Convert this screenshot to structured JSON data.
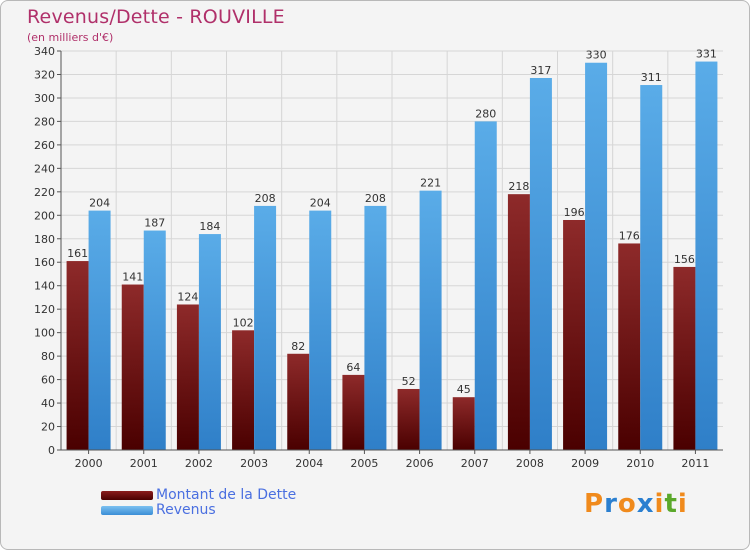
{
  "title": "Revenus/Dette - ROUVILLE",
  "subtitle": "(en milliers d'€)",
  "logo": {
    "text": "Proxiti",
    "letters": [
      "P",
      "r",
      "o",
      "x",
      "i",
      "t",
      "i"
    ],
    "colors": [
      "#f08a1c",
      "#2a7fd0",
      "#f08a1c",
      "#2a7fd0",
      "#f08a1c",
      "#5aa82a",
      "#f08a1c"
    ]
  },
  "chart_data": {
    "type": "bar",
    "title": "Revenus/Dette - ROUVILLE",
    "ylabel": "(en milliers d'€)",
    "ylim": [
      0,
      340
    ],
    "yticks": [
      0,
      20,
      40,
      60,
      80,
      100,
      120,
      140,
      160,
      180,
      200,
      220,
      240,
      260,
      280,
      300,
      320,
      340
    ],
    "grid": true,
    "legend_position": "bottom-left",
    "categories": [
      "2000",
      "2001",
      "2002",
      "2003",
      "2004",
      "2005",
      "2006",
      "2007",
      "2008",
      "2009",
      "2010",
      "2011"
    ],
    "series": [
      {
        "name": "Montant de la Dette",
        "color": "#7a1a1a",
        "values": [
          161,
          141,
          124,
          102,
          82,
          64,
          52,
          45,
          218,
          196,
          176,
          156
        ]
      },
      {
        "name": "Revenus",
        "color": "#4fa3e3",
        "values": [
          204,
          187,
          184,
          208,
          204,
          208,
          221,
          280,
          317,
          330,
          311,
          331
        ]
      }
    ]
  }
}
